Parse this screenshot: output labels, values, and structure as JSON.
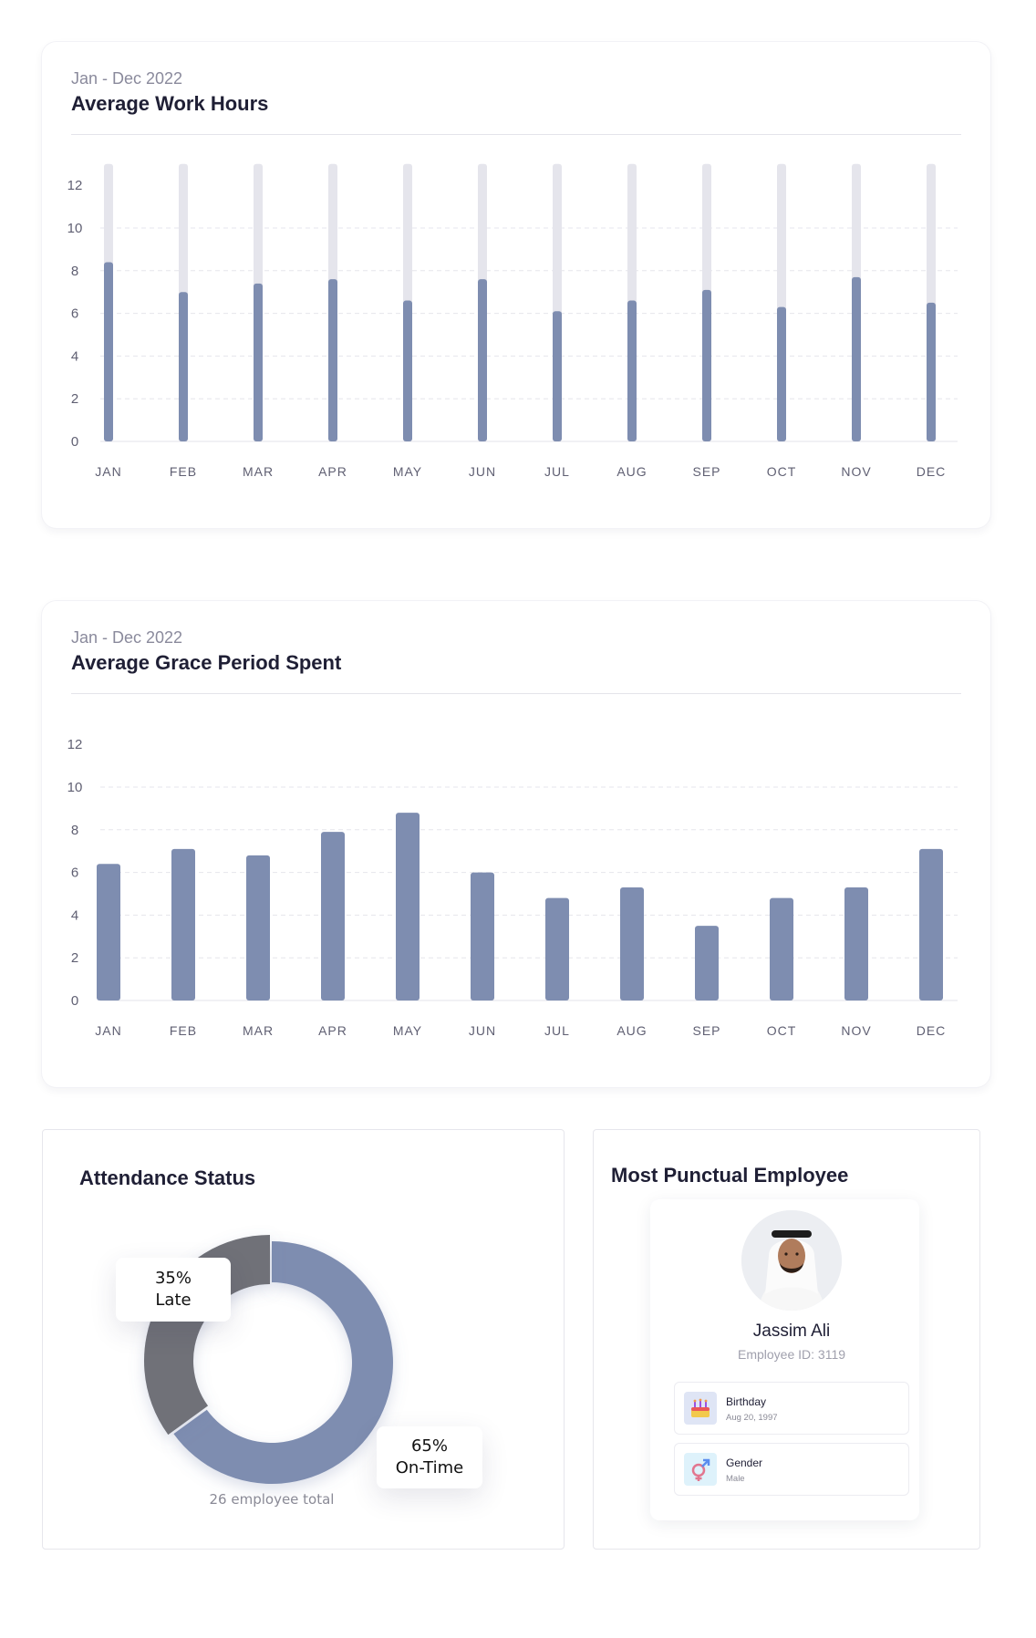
{
  "work_hours": {
    "subtitle": "Jan - Dec 2022",
    "title": "Average Work Hours"
  },
  "grace_period": {
    "subtitle": "Jan - Dec 2022",
    "title": "Average Grace Period Spent"
  },
  "chart_data": [
    {
      "type": "bar",
      "title": "Average Work Hours",
      "categories": [
        "JAN",
        "FEB",
        "MAR",
        "APR",
        "MAY",
        "JUN",
        "JUL",
        "AUG",
        "SEP",
        "OCT",
        "NOV",
        "DEC"
      ],
      "values": [
        8.4,
        7.0,
        7.4,
        7.6,
        6.6,
        7.6,
        6.1,
        6.6,
        7.1,
        6.3,
        7.7,
        6.5
      ],
      "background_max": 13,
      "yticks": [
        0,
        2,
        4,
        6,
        8,
        10,
        12
      ],
      "ylim": [
        0,
        13
      ],
      "grid": "dashed",
      "colors": {
        "bar": "#7e8db0",
        "track": "#e5e5ec"
      }
    },
    {
      "type": "bar",
      "title": "Average Grace Period Spent",
      "categories": [
        "JAN",
        "FEB",
        "MAR",
        "APR",
        "MAY",
        "JUN",
        "JUL",
        "AUG",
        "SEP",
        "OCT",
        "NOV",
        "DEC"
      ],
      "values": [
        6.4,
        7.1,
        6.8,
        7.9,
        8.8,
        6.0,
        4.8,
        5.3,
        3.5,
        4.8,
        5.3,
        7.1
      ],
      "yticks": [
        0,
        2,
        4,
        6,
        8,
        10,
        12
      ],
      "ylim": [
        0,
        13
      ],
      "grid": "dashed",
      "colors": {
        "bar": "#7e8db0"
      }
    },
    {
      "type": "pie",
      "title": "Attendance Status",
      "slices": [
        {
          "label": "Late",
          "value": 35,
          "color": "#6f7178"
        },
        {
          "label": "On-Time",
          "value": 65,
          "color": "#7e8db0"
        }
      ],
      "total_caption": "26 employee total"
    }
  ],
  "attendance": {
    "title": "Attendance Status",
    "late_pct": "35%",
    "late_label": "Late",
    "ontime_pct": "65%",
    "ontime_label": "On-Time",
    "caption": "26 employee total"
  },
  "punctual": {
    "title": "Most Punctual Employee",
    "name": "Jassim Ali",
    "employee_id": "Employee ID: 3119",
    "birthday_label": "Birthday",
    "birthday_value": "Aug 20, 1997",
    "gender_label": "Gender",
    "gender_value": "Male",
    "avatar_icon": "employee-avatar",
    "birthday_icon": "cake-icon",
    "gender_icon": "gender-icon"
  }
}
